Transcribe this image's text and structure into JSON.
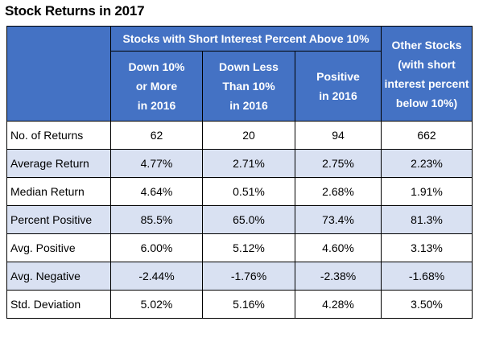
{
  "title": "Stock Returns in 2017",
  "header": {
    "group_label": "Stocks with Short Interest Percent Above 10%",
    "other_lines": [
      "Other Stocks",
      "(with short",
      "interest percent",
      "below 10%)"
    ],
    "sub_columns": [
      {
        "lines": [
          "Down 10%",
          "or More",
          "in 2016"
        ]
      },
      {
        "lines": [
          "Down Less",
          "Than 10%",
          "in 2016"
        ]
      },
      {
        "lines": [
          "Positive",
          "in 2016"
        ]
      }
    ]
  },
  "rows": [
    {
      "label": "No. of Returns",
      "values": [
        "62",
        "20",
        "94",
        "662"
      ]
    },
    {
      "label": "Average Return",
      "values": [
        "4.77%",
        "2.71%",
        "2.75%",
        "2.23%"
      ]
    },
    {
      "label": "Median Return",
      "values": [
        "4.64%",
        "0.51%",
        "2.68%",
        "1.91%"
      ]
    },
    {
      "label": "Percent Positive",
      "values": [
        "85.5%",
        "65.0%",
        "73.4%",
        "81.3%"
      ]
    },
    {
      "label": "Avg. Positive",
      "values": [
        "6.00%",
        "5.12%",
        "4.60%",
        "3.13%"
      ]
    },
    {
      "label": "Avg. Negative",
      "values": [
        "-2.44%",
        "-1.76%",
        "-2.38%",
        "-1.68%"
      ]
    },
    {
      "label": "Std. Deviation",
      "values": [
        "5.02%",
        "5.16%",
        "4.28%",
        "3.50%"
      ]
    }
  ],
  "colors": {
    "header_bg": "#4472c4",
    "header_text": "#ffffff",
    "band_bg": "#d9e1f2"
  }
}
